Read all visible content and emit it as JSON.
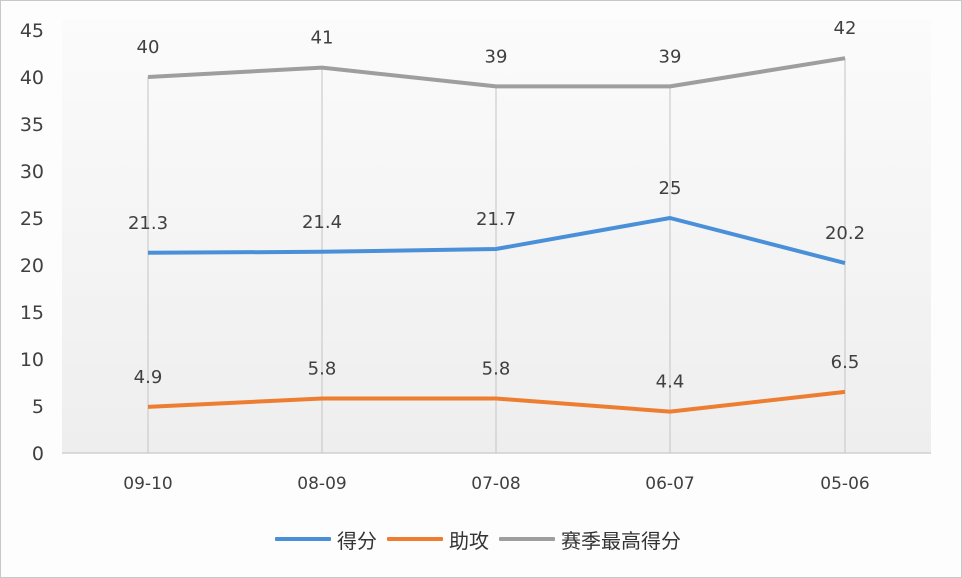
{
  "chart_data": {
    "type": "line",
    "title": "",
    "xlabel": "",
    "ylabel": "",
    "categories": [
      "09-10",
      "08-09",
      "07-08",
      "06-07",
      "05-06"
    ],
    "ylim": [
      0,
      45
    ],
    "yticks": [
      0,
      5,
      10,
      15,
      20,
      25,
      30,
      35,
      40,
      45
    ],
    "grid": "vertical drop lines at categories",
    "legend_position": "bottom",
    "series": [
      {
        "name": "得分",
        "color": "#4a90d9",
        "values": [
          21.3,
          21.4,
          21.7,
          25,
          20.2
        ],
        "labels": [
          "21.3",
          "21.4",
          "21.7",
          "25",
          "20.2"
        ]
      },
      {
        "name": "助攻",
        "color": "#ed7d31",
        "values": [
          4.9,
          5.8,
          5.8,
          4.4,
          6.5
        ],
        "labels": [
          "4.9",
          "5.8",
          "5.8",
          "4.4",
          "6.5"
        ]
      },
      {
        "name": "赛季最高得分",
        "color": "#9e9e9e",
        "values": [
          40,
          41,
          39,
          39,
          42
        ],
        "labels": [
          "40",
          "41",
          "39",
          "39",
          "42"
        ]
      }
    ]
  },
  "legend": {
    "items": [
      {
        "label": "得分",
        "color": "#4a90d9"
      },
      {
        "label": "助攻",
        "color": "#ed7d31"
      },
      {
        "label": "赛季最高得分",
        "color": "#9e9e9e"
      }
    ]
  }
}
